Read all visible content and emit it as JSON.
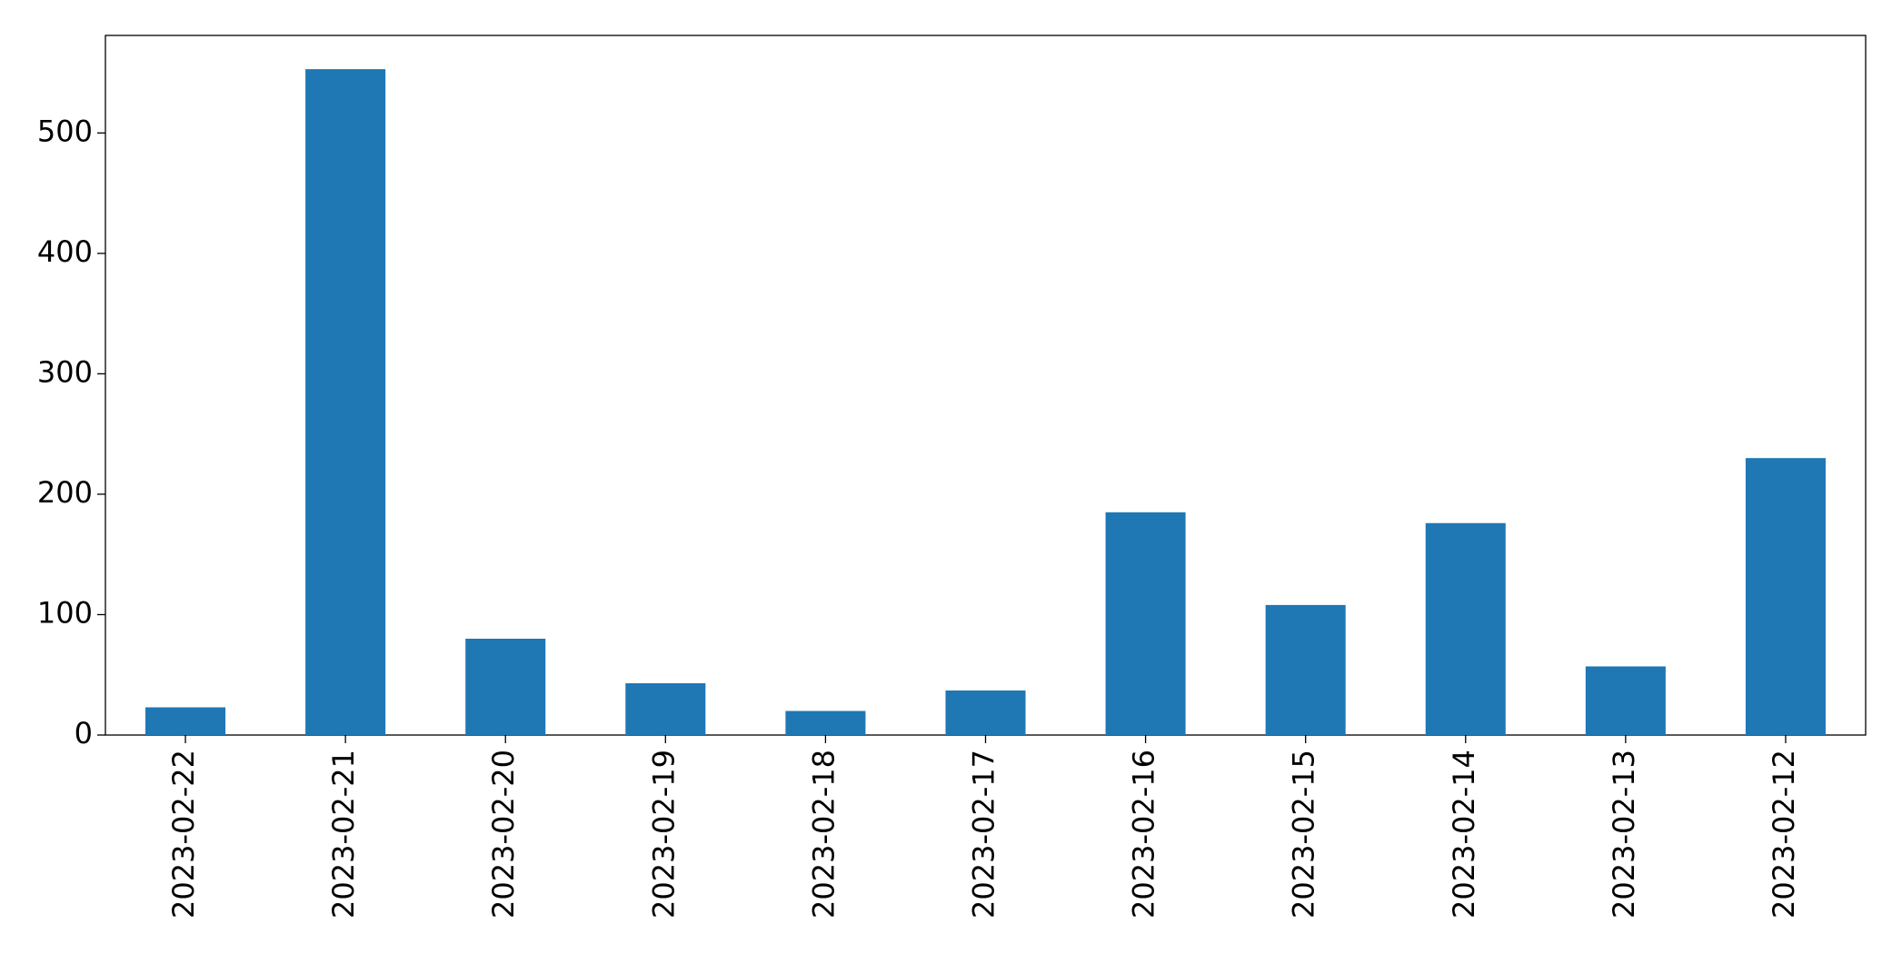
{
  "chart_data": {
    "type": "bar",
    "categories": [
      "2023-02-22",
      "2023-02-21",
      "2023-02-20",
      "2023-02-19",
      "2023-02-18",
      "2023-02-17",
      "2023-02-16",
      "2023-02-15",
      "2023-02-14",
      "2023-02-13",
      "2023-02-12"
    ],
    "values": [
      23,
      553,
      80,
      43,
      20,
      37,
      185,
      108,
      176,
      57,
      230
    ],
    "color": "#1f77b4",
    "ylim": [
      0,
      581
    ],
    "yticks": [
      0,
      100,
      200,
      300,
      400,
      500
    ],
    "grid": false
  }
}
